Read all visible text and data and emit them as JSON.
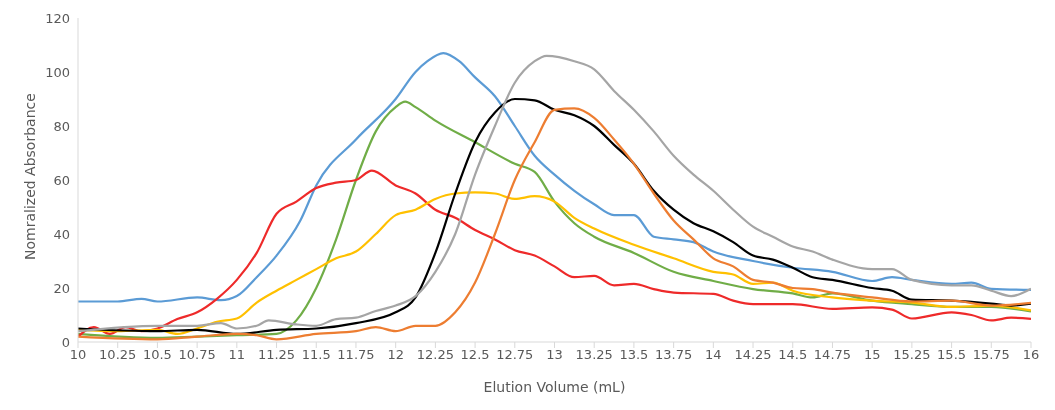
{
  "chart_data": {
    "type": "line",
    "xlabel": "Elution Volume (mL)",
    "ylabel": "Nomralized Absorbance",
    "xlim": [
      10,
      16
    ],
    "xticks": [
      10,
      10.25,
      10.5,
      10.75,
      11,
      11.25,
      11.5,
      11.75,
      12,
      12.25,
      12.5,
      12.75,
      13,
      13.25,
      13.5,
      13.75,
      14,
      14.25,
      14.5,
      14.75,
      15,
      15.25,
      15.5,
      15.75,
      16
    ],
    "ylim": [
      0,
      120
    ],
    "yticks": [
      0,
      20,
      40,
      60,
      80,
      100,
      120
    ],
    "marker": "none",
    "line_style": "solid",
    "series": [
      {
        "color": "#5b9bd5",
        "x": [
          10,
          10.25,
          10.4,
          10.5,
          10.75,
          10.9,
          11,
          11.125,
          11.25,
          11.4,
          11.5,
          11.75,
          12,
          12.125,
          12.2,
          12.3,
          12.4,
          12.5,
          12.625,
          12.75,
          12.875,
          13,
          13.125,
          13.25,
          13.375,
          13.5,
          13.625,
          13.75,
          13.875,
          14,
          14.25,
          14.5,
          14.75,
          15,
          15.125,
          15.25,
          15.5,
          15.625,
          15.75,
          16
        ],
        "values": [
          15,
          15,
          16,
          15,
          16.5,
          15.5,
          17,
          24,
          32,
          45,
          58,
          75,
          90,
          100,
          104,
          107,
          104,
          98,
          91,
          80,
          69,
          62,
          56,
          51,
          47,
          47,
          39,
          38,
          37,
          33.5,
          30,
          27.5,
          26,
          22.6,
          24,
          23,
          21.5,
          22,
          19.7,
          19.3
        ]
      },
      {
        "color": "#70ad47",
        "x": [
          10,
          10.5,
          10.75,
          11,
          11.25,
          11.375,
          11.5,
          11.625,
          11.75,
          11.875,
          12,
          12.06,
          12.125,
          12.25,
          12.5,
          12.75,
          12.875,
          13,
          13.125,
          13.25,
          13.5,
          13.75,
          14,
          14.25,
          14.5,
          14.625,
          14.75,
          15,
          15.25,
          15.5,
          15.75,
          16
        ],
        "values": [
          3,
          1.5,
          2,
          2.5,
          3,
          8,
          20,
          38,
          60,
          78,
          87,
          89,
          87,
          82,
          74,
          66,
          63,
          52,
          44,
          39,
          33,
          26,
          22.6,
          19.6,
          18,
          16.5,
          18,
          15.3,
          14,
          13,
          13,
          11.3
        ]
      },
      {
        "color": "#ee2a2a",
        "x": [
          10,
          10.1,
          10.2,
          10.3,
          10.4,
          10.5,
          10.625,
          10.75,
          10.875,
          11,
          11.125,
          11.25,
          11.375,
          11.5,
          11.625,
          11.75,
          11.85,
          12,
          12.125,
          12.25,
          12.375,
          12.5,
          12.625,
          12.75,
          12.875,
          13,
          13.125,
          13.25,
          13.375,
          13.5,
          13.625,
          13.75,
          14,
          14.125,
          14.25,
          14.5,
          14.75,
          15,
          15.125,
          15.25,
          15.5,
          15.625,
          15.75,
          15.875,
          16
        ],
        "values": [
          2,
          5.5,
          3,
          5.5,
          4,
          5,
          8.5,
          11,
          16,
          23,
          33,
          47.5,
          52,
          57,
          59,
          60,
          63.5,
          58,
          55,
          49,
          46,
          41.5,
          38,
          34,
          32,
          28,
          24,
          24.5,
          21,
          21.5,
          19.6,
          18.3,
          17.8,
          15.3,
          14,
          14,
          12.3,
          12.8,
          12,
          8.7,
          11,
          10,
          8,
          9,
          8.6
        ]
      },
      {
        "color": "#ffc000",
        "x": [
          10,
          10.25,
          10.5,
          10.625,
          10.75,
          10.875,
          11,
          11.125,
          11.25,
          11.375,
          11.5,
          11.625,
          11.75,
          11.875,
          12,
          12.125,
          12.25,
          12.375,
          12.5,
          12.625,
          12.75,
          12.875,
          13,
          13.125,
          13.25,
          13.5,
          13.75,
          14,
          14.125,
          14.25,
          14.375,
          14.5,
          14.75,
          15,
          15.25,
          15.5,
          15.75,
          16
        ],
        "values": [
          4.5,
          4,
          4.5,
          3,
          5,
          7.5,
          8.7,
          14.6,
          19,
          23,
          27,
          31,
          33.5,
          40,
          47,
          49,
          53,
          55,
          55.4,
          55,
          53,
          54,
          52,
          46,
          42,
          36,
          31,
          26,
          25,
          21.5,
          22,
          19,
          16.5,
          15.3,
          14.6,
          13,
          13.5,
          11.7
        ]
      },
      {
        "color": "#000000",
        "x": [
          10,
          10.5,
          10.75,
          11,
          11.25,
          11.5,
          11.75,
          12,
          12.125,
          12.25,
          12.375,
          12.5,
          12.625,
          12.75,
          12.875,
          13,
          13.125,
          13.25,
          13.375,
          13.5,
          13.625,
          13.75,
          13.875,
          14,
          14.125,
          14.25,
          14.375,
          14.5,
          14.625,
          14.75,
          15,
          15.125,
          15.25,
          15.5,
          15.75,
          15.875,
          16
        ],
        "values": [
          5,
          4,
          4.5,
          3,
          4.5,
          5,
          7,
          11,
          16.5,
          33,
          55,
          74,
          85,
          90,
          89.5,
          86,
          84,
          80,
          73,
          66,
          56,
          49,
          44,
          41,
          37,
          32,
          30.5,
          27.5,
          24,
          23,
          20,
          19,
          15.7,
          15.3,
          14.2,
          13.5,
          14.2
        ]
      },
      {
        "color": "#a5a5a5",
        "x": [
          10,
          10.5,
          10.75,
          10.9,
          11,
          11.125,
          11.2,
          11.375,
          11.5,
          11.625,
          11.75,
          11.875,
          12,
          12.125,
          12.25,
          12.375,
          12.5,
          12.625,
          12.75,
          12.875,
          12.95,
          13.125,
          13.25,
          13.375,
          13.5,
          13.625,
          13.75,
          13.875,
          14,
          14.125,
          14.25,
          14.375,
          14.5,
          14.625,
          14.75,
          15,
          15.125,
          15.25,
          15.5,
          15.625,
          15.75,
          15.875,
          16
        ],
        "values": [
          4,
          6,
          6,
          7,
          5,
          6,
          8,
          6.5,
          6,
          8.5,
          9,
          11.5,
          13.5,
          17,
          26,
          40,
          62,
          80,
          96,
          104,
          106,
          104,
          101,
          93,
          86,
          78,
          69,
          62,
          56,
          49,
          42.7,
          39,
          35.4,
          33.5,
          30.5,
          27,
          27,
          23,
          21,
          21,
          19,
          17,
          19.7
        ]
      },
      {
        "color": "#ed7d31",
        "x": [
          10,
          10.5,
          10.75,
          11,
          11.125,
          11.25,
          11.5,
          11.75,
          11.875,
          12,
          12.125,
          12.25,
          12.375,
          12.5,
          12.625,
          12.75,
          12.875,
          13,
          13.125,
          13.25,
          13.375,
          13.5,
          13.625,
          13.75,
          13.875,
          14,
          14.125,
          14.25,
          14.375,
          14.5,
          14.625,
          14.75,
          15,
          15.25,
          15.5,
          15.75,
          16
        ],
        "values": [
          2,
          1,
          2,
          3,
          2.5,
          1,
          3,
          4,
          5.5,
          4,
          6,
          6,
          11,
          22,
          40,
          60,
          74,
          86,
          86.5,
          83,
          75,
          66,
          55,
          45,
          38,
          31,
          28,
          23,
          22,
          20,
          19.6,
          18.3,
          16.5,
          15,
          15.3,
          13.5,
          14.5
        ]
      }
    ]
  }
}
